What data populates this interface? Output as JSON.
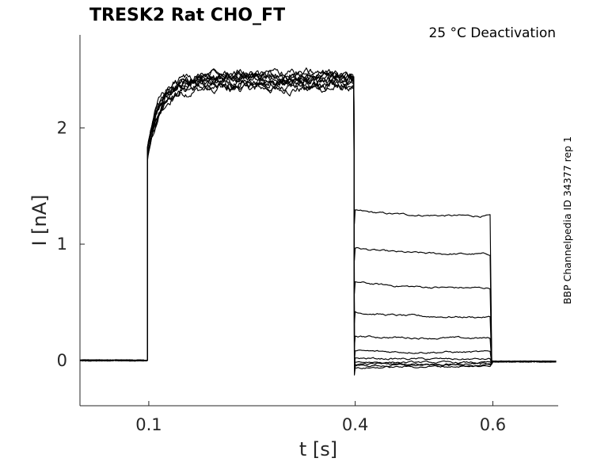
{
  "chart_data": {
    "type": "line",
    "title": "TRESK2  Rat  CHO_FT",
    "subtitle": "25 °C  Deactivation",
    "side_label": "BBP Channelpedia ID 34377 rep 1",
    "xlabel": "t [s]",
    "ylabel": "I [nA]",
    "xlim": [
      0.0,
      0.695
    ],
    "ylim": [
      -0.39,
      2.8
    ],
    "xticks": [
      0.1,
      0.4,
      0.6
    ],
    "xtick_labels": [
      "0.1",
      "0.4",
      "0.6"
    ],
    "yticks": [
      0,
      1,
      2
    ],
    "ytick_labels": [
      "0",
      "1",
      "2"
    ],
    "grid": false,
    "legend": "none",
    "color": "#000000",
    "protocol": {
      "baseline_end": 0.098,
      "activation_start": 0.098,
      "activation_end": 0.398,
      "test_start": 0.398,
      "test_end": 0.598,
      "end": 0.695
    },
    "activation_plateau_nA": [
      2.34,
      2.36,
      2.38,
      2.39,
      2.4,
      2.41,
      2.42,
      2.43,
      2.44,
      2.45,
      2.46
    ],
    "tail_start_nA": [
      1.29,
      0.97,
      0.68,
      0.42,
      0.21,
      0.08,
      0.02,
      -0.01,
      -0.03,
      -0.05,
      -0.07
    ],
    "tail_end_nA": [
      1.24,
      0.91,
      0.62,
      0.37,
      0.19,
      0.07,
      0.01,
      -0.02,
      -0.03,
      -0.04,
      -0.05
    ]
  }
}
